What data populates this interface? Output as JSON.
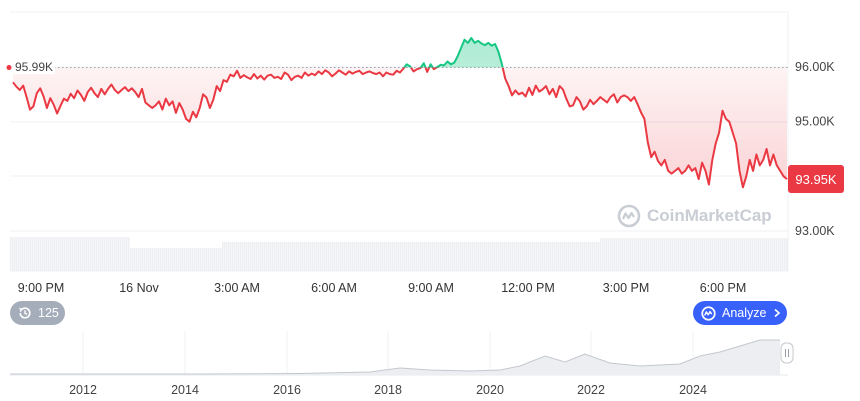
{
  "chart_data": {
    "type": "line",
    "title": "",
    "xlabel": "",
    "ylabel": "",
    "y_ticks": [
      "96.00K",
      "95.00K",
      "93.00K"
    ],
    "y_tick_values": [
      96000,
      95000,
      93000
    ],
    "x_ticks": [
      "9:00 PM",
      "16 Nov",
      "3:00 AM",
      "6:00 AM",
      "9:00 AM",
      "12:00 PM",
      "3:00 PM",
      "6:00 PM"
    ],
    "reference_value": 95990,
    "reference_label": "95.99K",
    "last_value": 93950,
    "last_label": "93.95K",
    "grid": true,
    "series": [
      {
        "values": [
          95720,
          95640,
          95580,
          95660,
          95450,
          95220,
          95280,
          95520,
          95610,
          95460,
          95250,
          95430,
          95310,
          95150,
          95290,
          95420,
          95380,
          95510,
          95430,
          95570,
          95490,
          95380,
          95540,
          95620,
          95520,
          95450,
          95600,
          95500,
          95600,
          95680,
          95580,
          95520,
          95580,
          95630,
          95560,
          95610,
          95540,
          95450,
          95600,
          95350,
          95300,
          95250,
          95300,
          95370,
          95220,
          95420,
          95300,
          95370,
          95160,
          95340,
          95220,
          95050,
          95000,
          95180,
          95080,
          95250,
          95500,
          95440,
          95250,
          95400,
          95650,
          95560,
          95760,
          95730,
          95860,
          95830,
          95930,
          95800,
          95850,
          95810,
          95780,
          95870,
          95790,
          95840,
          95770,
          95840,
          95860,
          95800,
          95820,
          95780,
          95900,
          95860,
          95760,
          95820,
          95840,
          95800,
          95900,
          95840,
          95880,
          95850,
          95920,
          95870,
          95940,
          95900,
          95830,
          95880,
          95940,
          95900,
          95860,
          95920,
          95880,
          95910,
          95930,
          95870,
          95900,
          95920,
          95890,
          95870,
          95900,
          95830,
          95900,
          95870,
          95860,
          95930,
          95900,
          95970,
          96050,
          96010,
          95920,
          95960,
          95980,
          96070,
          95910,
          96050,
          95960,
          96000,
          96040,
          96030,
          96100,
          96050,
          96080,
          96200,
          96350,
          96500,
          96440,
          96530,
          96440,
          96480,
          96430,
          96400,
          96440,
          96390,
          96420,
          96280,
          96060,
          95790,
          95650,
          95480,
          95570,
          95500,
          95530,
          95460,
          95620,
          95490,
          95660,
          95550,
          95590,
          95650,
          95500,
          95600,
          95450,
          95650,
          95590,
          95420,
          95280,
          95300,
          95450,
          95370,
          95220,
          95280,
          95400,
          95320,
          95380,
          95450,
          95400,
          95350,
          95450,
          95500,
          95350,
          95450,
          95480,
          95450,
          95380,
          95450,
          95320,
          95170,
          95050,
          94620,
          94350,
          94450,
          94280,
          94200,
          94300,
          94100,
          94050,
          94100,
          94150,
          94050,
          94100,
          94200,
          94100,
          94150,
          93950,
          94250,
          94100,
          93850,
          94300,
          94600,
          94800,
          95200,
          95050,
          95000,
          94800,
          94600,
          94100,
          93800,
          94000,
          94300,
          94100,
          94400,
          94200,
          94300,
          94500,
          94200,
          94400,
          94200,
          94100,
          94000,
          93950
        ]
      }
    ],
    "navigator": {
      "x_ticks": [
        "2012",
        "2014",
        "2016",
        "2018",
        "2020",
        "2022",
        "2024"
      ]
    }
  },
  "controls": {
    "history_count": "125",
    "analyze_label": "Analyze"
  },
  "watermark": "CoinMarketCap"
}
